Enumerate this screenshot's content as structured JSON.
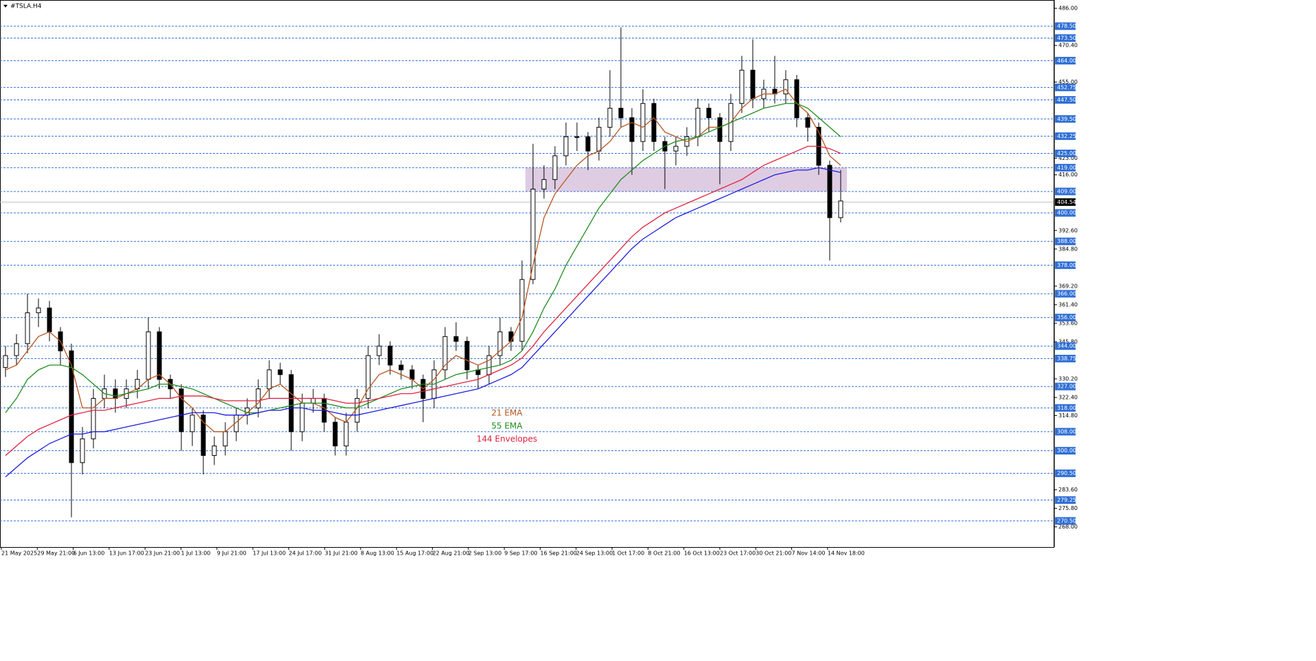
{
  "chart_data": {
    "type": "candlestick",
    "title": "#TSLA.H4",
    "ylim": [
      259.5,
      489.5
    ],
    "yticks": [
      {
        "value": 486,
        "label": "486.00"
      },
      {
        "value": 470.4,
        "label": "470.40"
      },
      {
        "value": 455,
        "label": "455.00"
      },
      {
        "value": 423,
        "label": "423.00"
      },
      {
        "value": 416,
        "label": "416.00"
      },
      {
        "value": 392.6,
        "label": "392.60"
      },
      {
        "value": 384.8,
        "label": "384.80"
      },
      {
        "value": 369.2,
        "label": "369.20"
      },
      {
        "value": 361.4,
        "label": "361.40"
      },
      {
        "value": 353.6,
        "label": "353.60"
      },
      {
        "value": 345.8,
        "label": "345.80"
      },
      {
        "value": 330.2,
        "label": "330.20"
      },
      {
        "value": 322.4,
        "label": "322.40"
      },
      {
        "value": 314.8,
        "label": "314.80"
      },
      {
        "value": 283.6,
        "label": "283.60"
      },
      {
        "value": 275.8,
        "label": "275.80"
      },
      {
        "value": 268,
        "label": "268.00"
      }
    ],
    "levels": [
      {
        "value": 478.5,
        "label": "478.50"
      },
      {
        "value": 473.5,
        "label": "473.50"
      },
      {
        "value": 464,
        "label": "464.00"
      },
      {
        "value": 452.75,
        "label": "452.75"
      },
      {
        "value": 447.5,
        "label": "447.50"
      },
      {
        "value": 439.5,
        "label": "439.50"
      },
      {
        "value": 432.25,
        "label": "432.25"
      },
      {
        "value": 425,
        "label": "425.00"
      },
      {
        "value": 419,
        "label": "419.00"
      },
      {
        "value": 409,
        "label": "409.00"
      },
      {
        "value": 400,
        "label": "400.00"
      },
      {
        "value": 388,
        "label": "388.00"
      },
      {
        "value": 378,
        "label": "378.00"
      },
      {
        "value": 366,
        "label": "366.00"
      },
      {
        "value": 356,
        "label": "356.00"
      },
      {
        "value": 344,
        "label": "344.00"
      },
      {
        "value": 338.75,
        "label": "338.75"
      },
      {
        "value": 327,
        "label": "327.00"
      },
      {
        "value": 318,
        "label": "318.00"
      },
      {
        "value": 308,
        "label": "308.00"
      },
      {
        "value": 300,
        "label": "300.00"
      },
      {
        "value": 290.5,
        "label": "290.50"
      },
      {
        "value": 279.25,
        "label": "279.25"
      },
      {
        "value": 270.5,
        "label": "270.50"
      }
    ],
    "current_price": {
      "value": 404.54,
      "label": "404.54"
    },
    "zone": [
      409,
      419
    ],
    "level_color": "#2f6fd6",
    "zone_color": "#d8c3dd",
    "x_labels": [
      "21 May 2025",
      "29 May 21:00",
      "6 Jun 13:00",
      "13 Jun 17:00",
      "23 Jun 21:00",
      "1 Jul 13:00",
      "9 Jul 21:00",
      "17 Jul 13:00",
      "24 Jul 17:00",
      "31 Jul 21:00",
      "8 Aug 13:00",
      "15 Aug 17:00",
      "22 Aug 21:00",
      "2 Sep 13:00",
      "9 Sep 17:00",
      "16 Sep 21:00",
      "24 Sep 13:00",
      "1 Oct 17:00",
      "8 Oct 21:00",
      "16 Oct 13:00",
      "23 Oct 17:00",
      "30 Oct 21:00",
      "7 Nov 14:00",
      "14 Nov 18:00"
    ],
    "ohlc": [
      [
        335,
        344,
        331,
        340
      ],
      [
        340,
        349,
        336,
        345
      ],
      [
        345,
        366,
        341,
        358
      ],
      [
        358,
        364,
        352,
        360
      ],
      [
        360,
        363,
        346,
        350
      ],
      [
        350,
        352,
        336,
        342
      ],
      [
        342,
        345,
        272,
        295
      ],
      [
        295,
        310,
        290,
        305
      ],
      [
        305,
        326,
        301,
        322
      ],
      [
        322,
        332,
        318,
        326
      ],
      [
        326,
        330,
        316,
        322
      ],
      [
        322,
        330,
        318,
        326
      ],
      [
        326,
        334,
        322,
        330
      ],
      [
        330,
        356,
        326,
        350
      ],
      [
        350,
        352,
        326,
        330
      ],
      [
        330,
        332,
        322,
        326
      ],
      [
        326,
        328,
        300,
        308
      ],
      [
        308,
        318,
        302,
        315
      ],
      [
        315,
        317,
        290,
        298
      ],
      [
        298,
        306,
        294,
        302
      ],
      [
        302,
        312,
        298,
        308
      ],
      [
        308,
        318,
        304,
        315
      ],
      [
        315,
        322,
        311,
        318
      ],
      [
        318,
        330,
        314,
        326
      ],
      [
        326,
        338,
        322,
        334
      ],
      [
        334,
        337,
        328,
        332
      ],
      [
        332,
        334,
        300,
        308
      ],
      [
        308,
        324,
        304,
        320
      ],
      [
        320,
        326,
        316,
        322
      ],
      [
        322,
        324,
        308,
        312
      ],
      [
        312,
        314,
        298,
        302
      ],
      [
        302,
        316,
        298,
        312
      ],
      [
        312,
        326,
        308,
        322
      ],
      [
        322,
        344,
        318,
        340
      ],
      [
        340,
        349,
        336,
        344
      ],
      [
        344,
        346,
        332,
        336
      ],
      [
        336,
        338,
        330,
        334
      ],
      [
        334,
        336,
        326,
        330
      ],
      [
        330,
        332,
        312,
        322
      ],
      [
        322,
        338,
        318,
        334
      ],
      [
        334,
        352,
        330,
        348
      ],
      [
        348,
        354,
        342,
        346
      ],
      [
        346,
        348,
        330,
        334
      ],
      [
        334,
        336,
        326,
        332
      ],
      [
        332,
        344,
        328,
        340
      ],
      [
        340,
        356,
        336,
        350
      ],
      [
        350,
        352,
        342,
        346
      ],
      [
        346,
        380,
        342,
        372
      ],
      [
        372,
        429,
        370,
        410
      ],
      [
        410,
        420,
        406,
        414
      ],
      [
        414,
        428,
        410,
        424
      ],
      [
        424,
        438,
        420,
        432
      ],
      [
        432,
        438,
        426,
        432
      ],
      [
        432,
        434,
        418,
        426
      ],
      [
        426,
        440,
        422,
        436
      ],
      [
        436,
        460,
        432,
        444
      ],
      [
        444,
        478,
        436,
        440
      ],
      [
        440,
        444,
        416,
        430
      ],
      [
        430,
        452,
        426,
        446
      ],
      [
        446,
        448,
        426,
        430
      ],
      [
        430,
        432,
        410,
        426
      ],
      [
        426,
        432,
        420,
        428
      ],
      [
        428,
        436,
        424,
        432
      ],
      [
        432,
        448,
        428,
        444
      ],
      [
        444,
        446,
        434,
        440
      ],
      [
        440,
        442,
        412,
        430
      ],
      [
        430,
        450,
        426,
        446
      ],
      [
        446,
        466,
        442,
        460
      ],
      [
        460,
        473,
        444,
        448
      ],
      [
        448,
        456,
        444,
        452
      ],
      [
        452,
        466,
        446,
        450
      ],
      [
        450,
        460,
        446,
        456
      ],
      [
        456,
        458,
        436,
        440
      ],
      [
        440,
        442,
        430,
        436
      ],
      [
        436,
        438,
        416,
        420
      ],
      [
        420,
        422,
        380,
        398
      ],
      [
        398,
        418,
        396,
        405
      ]
    ],
    "series": [
      {
        "name": "21 EMA",
        "color": "#b5541f",
        "values": [
          334,
          336,
          342,
          348,
          350,
          346,
          336,
          318,
          318,
          322,
          322,
          324,
          326,
          330,
          332,
          328,
          322,
          318,
          312,
          308,
          308,
          312,
          316,
          320,
          326,
          328,
          324,
          320,
          320,
          318,
          314,
          312,
          318,
          326,
          332,
          334,
          332,
          330,
          326,
          330,
          336,
          340,
          338,
          336,
          338,
          342,
          346,
          356,
          378,
          398,
          408,
          414,
          420,
          424,
          426,
          430,
          436,
          438,
          436,
          440,
          434,
          432,
          430,
          432,
          436,
          436,
          438,
          444,
          448,
          450,
          450,
          452,
          446,
          442,
          434,
          424,
          420
        ]
      },
      {
        "name": "55 EMA",
        "color": "#1e8c1e",
        "values": [
          316,
          322,
          330,
          334,
          336,
          336,
          335,
          332,
          328,
          324,
          323,
          324,
          325,
          326,
          328,
          328,
          327,
          326,
          324,
          322,
          320,
          318,
          316,
          316,
          317,
          318,
          319,
          320,
          320,
          320,
          319,
          318,
          318,
          320,
          322,
          324,
          326,
          327,
          328,
          328,
          330,
          332,
          333,
          334,
          335,
          336,
          338,
          342,
          350,
          360,
          368,
          378,
          386,
          394,
          402,
          408,
          414,
          418,
          422,
          425,
          428,
          430,
          431,
          432,
          434,
          436,
          438,
          440,
          442,
          444,
          445,
          446,
          446,
          444,
          440,
          436,
          432
        ]
      },
      {
        "name": "144 Envelopes",
        "color": "#e0203c",
        "values": [
          298,
          302,
          306,
          309,
          311,
          313,
          315,
          316,
          317,
          317,
          318,
          319,
          320,
          321,
          322,
          322,
          323,
          323,
          323,
          322,
          321,
          321,
          321,
          321,
          322,
          322,
          322,
          322,
          322,
          322,
          321,
          320,
          320,
          321,
          322,
          323,
          324,
          324,
          325,
          326,
          327,
          328,
          329,
          330,
          332,
          334,
          336,
          339,
          344,
          350,
          355,
          360,
          365,
          370,
          375,
          380,
          385,
          390,
          394,
          397,
          400,
          402,
          404,
          406,
          408,
          410,
          412,
          414,
          417,
          420,
          422,
          424,
          426,
          428,
          428,
          427,
          425
        ]
      },
      {
        "color": "#1a1ae0",
        "values": [
          289,
          293,
          297,
          300,
          303,
          305,
          307,
          307,
          308,
          308,
          309,
          310,
          311,
          312,
          313,
          314,
          315,
          316,
          316,
          316,
          315,
          315,
          315,
          316,
          317,
          317,
          318,
          318,
          317,
          317,
          316,
          315,
          315,
          316,
          317,
          318,
          319,
          320,
          321,
          322,
          323,
          324,
          325,
          326,
          328,
          330,
          332,
          335,
          340,
          345,
          350,
          355,
          360,
          365,
          370,
          375,
          380,
          385,
          389,
          392,
          395,
          398,
          400,
          402,
          404,
          406,
          408,
          410,
          412,
          414,
          416,
          417,
          418,
          418,
          419,
          418,
          417
        ]
      }
    ]
  }
}
